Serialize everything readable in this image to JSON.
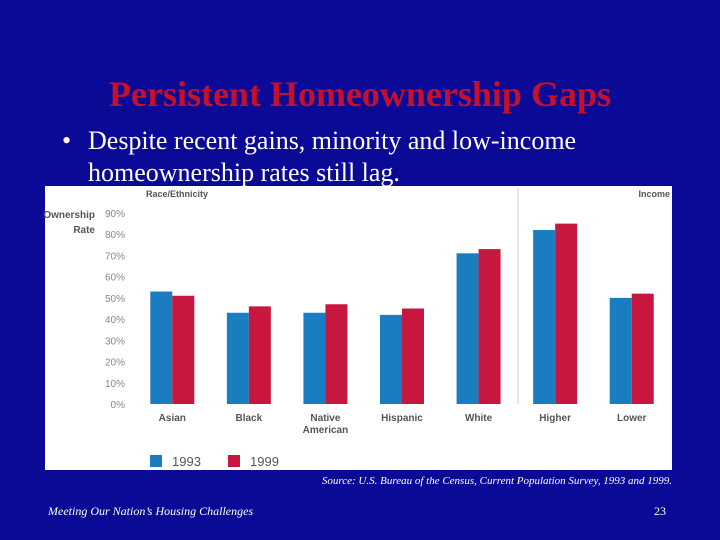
{
  "slide": {
    "title": "Persistent Homeownership Gaps",
    "bullet": "Despite recent gains, minority and low-income homeownership rates still lag.",
    "source": "Source: U.S. Bureau of the Census, Current Population Survey, 1993 and 1999.",
    "footer": "Meeting Our Nation’s Housing Challenges",
    "page_number": "23"
  },
  "chart_data": {
    "type": "bar",
    "y_label": "Ownership Rate",
    "annotations": [
      "Race/Ethnicity",
      "Income"
    ],
    "categories": [
      "Asian",
      "Black",
      "Native American",
      "Hispanic",
      "White",
      "Higher",
      "Lower"
    ],
    "series": [
      {
        "name": "1993",
        "color": "#1a7dc0",
        "values": [
          53,
          43,
          43,
          42,
          71,
          82,
          50
        ]
      },
      {
        "name": "1999",
        "color": "#c8173f",
        "values": [
          51,
          46,
          47,
          45,
          73,
          85,
          52
        ]
      }
    ],
    "ylim": [
      0,
      90
    ],
    "yticks": [
      {
        "value": 0,
        "label": "0%"
      },
      {
        "value": 10,
        "label": "10%"
      },
      {
        "value": 20,
        "label": "20%"
      },
      {
        "value": 30,
        "label": "30%"
      },
      {
        "value": 40,
        "label": "40%"
      },
      {
        "value": 50,
        "label": "50%"
      },
      {
        "value": 60,
        "label": "60%"
      },
      {
        "value": 70,
        "label": "70%"
      },
      {
        "value": 80,
        "label": "80%"
      },
      {
        "value": 90,
        "label": "90%"
      }
    ],
    "grid": false
  }
}
